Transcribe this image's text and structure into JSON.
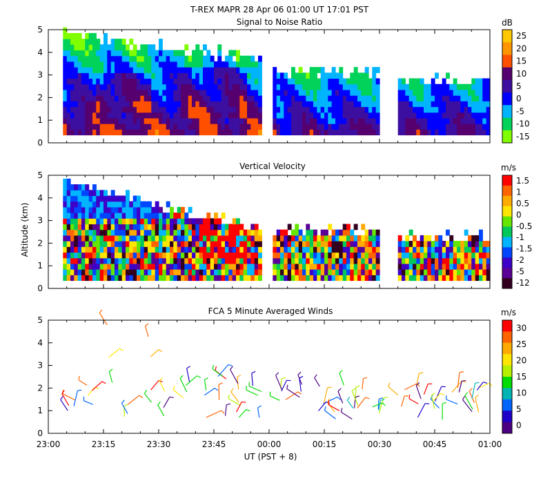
{
  "figure": {
    "title": "T-REX  MAPR 28 Apr 06  01:00 UT  17:01  PST",
    "ylabel": "Altitude (km)",
    "xlabel": "UT  (PST + 8)",
    "xticks": [
      "23:00",
      "23:15",
      "23:30",
      "23:45",
      "00:00",
      "00:15",
      "00:30",
      "00:45",
      "01:00"
    ],
    "gaps_minutes": [
      [
        0,
        3.5
      ],
      [
        58,
        61
      ],
      [
        90,
        95
      ]
    ]
  },
  "chart_data": [
    {
      "type": "heatmap",
      "title": "Signal to Noise Ratio",
      "units": "dB",
      "x_minutes": [
        0,
        120
      ],
      "ylim": [
        0,
        5
      ],
      "yticks": [
        "0",
        "1",
        "2",
        "3",
        "4",
        "5"
      ],
      "data_altitude_range_km": [
        0.3,
        5.0
      ],
      "colorbar_labels": [
        "25",
        "20",
        "15",
        "10",
        "5",
        "0",
        "-5",
        "-10",
        "-15"
      ],
      "colors": [
        "#ffc800",
        "#ff9600",
        "#ff5000",
        "#55006e",
        "#3c0fa0",
        "#0000ff",
        "#00b4ff",
        "#00d25a",
        "#7fff00"
      ]
    },
    {
      "type": "heatmap",
      "title": "Vertical Velocity",
      "units": "m/s",
      "x_minutes": [
        0,
        120
      ],
      "ylim": [
        0,
        5
      ],
      "yticks": [
        "0",
        "1",
        "2",
        "3",
        "4",
        "5"
      ],
      "data_altitude_range_km": [
        0.3,
        5.0
      ],
      "colorbar_labels": [
        "1.5",
        "1",
        "0.5",
        "0",
        "-0.5",
        "-1",
        "-1.5",
        "-2",
        "-5",
        "-12"
      ],
      "colors": [
        "#ff0000",
        "#ff6400",
        "#ffaa00",
        "#ffe600",
        "#64e600",
        "#00c85a",
        "#00b4ff",
        "#0046ff",
        "#3c00c8",
        "#5a0096",
        "#32001e"
      ]
    },
    {
      "type": "scatter",
      "title": "FCA 5 Minute Averaged Winds",
      "units": "m/s",
      "x_minutes": [
        0,
        120
      ],
      "ylim": [
        0,
        5
      ],
      "yticks": [
        "0",
        "1",
        "2",
        "3",
        "4",
        "5"
      ],
      "colorbar_labels": [
        "30",
        "25",
        "20",
        "15",
        "10",
        "5",
        "0"
      ],
      "colors": [
        "#ff0000",
        "#ff6400",
        "#ffaa00",
        "#ffe600",
        "#b4f000",
        "#00dc00",
        "#00b4b4",
        "#0064ff",
        "#1e00c8",
        "#4b0082"
      ]
    }
  ]
}
